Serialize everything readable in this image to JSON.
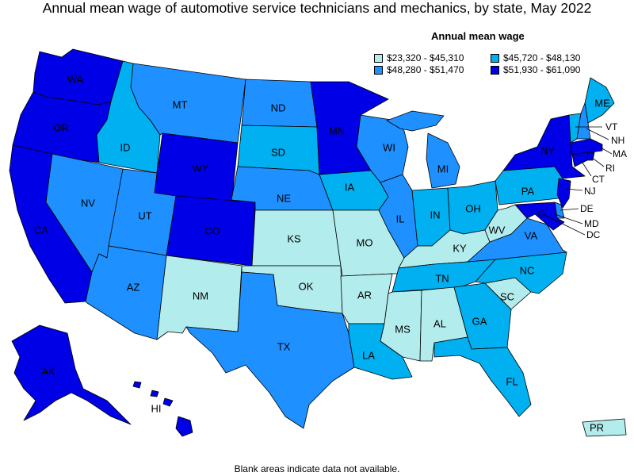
{
  "title": "Annual mean wage of automotive service technicians and mechanics, by state, May 2022",
  "legend": {
    "title": "Annual mean wage",
    "items": [
      {
        "label": "$23,320 - $45,310",
        "color": "#b3ecec"
      },
      {
        "label": "$45,720 - $48,130",
        "color": "#00b0f0"
      },
      {
        "label": "$48,280 - $51,470",
        "color": "#1e90ff"
      },
      {
        "label": "$51,930 - $61,090",
        "color": "#0000e6"
      }
    ]
  },
  "footer": "Blank areas indicate data not available.",
  "states": [
    {
      "abbr": "WA",
      "bin": 3
    },
    {
      "abbr": "OR",
      "bin": 3
    },
    {
      "abbr": "CA",
      "bin": 3
    },
    {
      "abbr": "ID",
      "bin": 1
    },
    {
      "abbr": "NV",
      "bin": 2
    },
    {
      "abbr": "MT",
      "bin": 2
    },
    {
      "abbr": "WY",
      "bin": 3
    },
    {
      "abbr": "UT",
      "bin": 2
    },
    {
      "abbr": "AZ",
      "bin": 2
    },
    {
      "abbr": "CO",
      "bin": 3
    },
    {
      "abbr": "NM",
      "bin": 0
    },
    {
      "abbr": "ND",
      "bin": 2
    },
    {
      "abbr": "SD",
      "bin": 1
    },
    {
      "abbr": "NE",
      "bin": 2
    },
    {
      "abbr": "KS",
      "bin": 0
    },
    {
      "abbr": "OK",
      "bin": 0
    },
    {
      "abbr": "TX",
      "bin": 2
    },
    {
      "abbr": "MN",
      "bin": 3
    },
    {
      "abbr": "IA",
      "bin": 1
    },
    {
      "abbr": "MO",
      "bin": 0
    },
    {
      "abbr": "AR",
      "bin": 0
    },
    {
      "abbr": "LA",
      "bin": 1
    },
    {
      "abbr": "WI",
      "bin": 2
    },
    {
      "abbr": "IL",
      "bin": 2
    },
    {
      "abbr": "MI",
      "bin": 2
    },
    {
      "abbr": "IN",
      "bin": 1
    },
    {
      "abbr": "OH",
      "bin": 1
    },
    {
      "abbr": "KY",
      "bin": 0
    },
    {
      "abbr": "TN",
      "bin": 1
    },
    {
      "abbr": "MS",
      "bin": 0
    },
    {
      "abbr": "AL",
      "bin": 0
    },
    {
      "abbr": "GA",
      "bin": 1
    },
    {
      "abbr": "FL",
      "bin": 1
    },
    {
      "abbr": "SC",
      "bin": 0
    },
    {
      "abbr": "NC",
      "bin": 1
    },
    {
      "abbr": "VA",
      "bin": 2
    },
    {
      "abbr": "WV",
      "bin": 0
    },
    {
      "abbr": "PA",
      "bin": 1
    },
    {
      "abbr": "NY",
      "bin": 3
    },
    {
      "abbr": "ME",
      "bin": 1
    },
    {
      "abbr": "VT",
      "bin": 1
    },
    {
      "abbr": "NH",
      "bin": 2
    },
    {
      "abbr": "MA",
      "bin": 3
    },
    {
      "abbr": "RI",
      "bin": 3
    },
    {
      "abbr": "CT",
      "bin": 3
    },
    {
      "abbr": "NJ",
      "bin": 3
    },
    {
      "abbr": "DE",
      "bin": 2
    },
    {
      "abbr": "MD",
      "bin": 3
    },
    {
      "abbr": "DC",
      "bin": 3
    },
    {
      "abbr": "AK",
      "bin": 3
    },
    {
      "abbr": "HI",
      "bin": 3
    },
    {
      "abbr": "PR",
      "bin": 0
    }
  ]
}
